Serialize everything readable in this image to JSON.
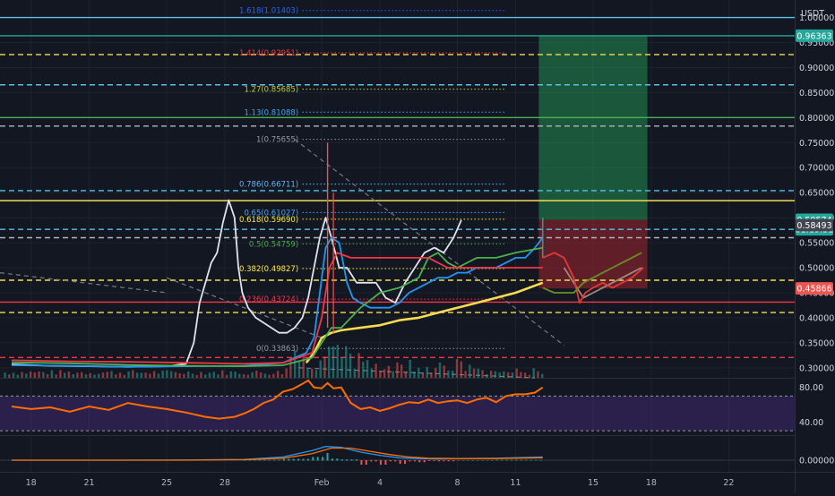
{
  "currency": "USDT",
  "chart_data": {
    "type": "line",
    "title": "",
    "quote_currency": "USDT",
    "price_axis": {
      "ticks": [
        1.0,
        0.95,
        0.9,
        0.85,
        0.8,
        0.75,
        0.7,
        0.65,
        0.6,
        0.55,
        0.5,
        0.45,
        0.4,
        0.35,
        0.3
      ],
      "tick_labels": [
        "1.00000",
        "0.95000",
        "0.90000",
        "0.85000",
        "0.80000",
        "0.75000",
        "0.70000",
        "0.65000",
        "0.60000",
        "0.55000",
        "0.50000",
        "0.45000",
        "0.40000",
        "0.35000",
        "0.30000"
      ],
      "ylim": [
        0.28,
        1.035
      ]
    },
    "rsi_axis": {
      "ticks": [
        80,
        40
      ],
      "tick_labels": [
        "80.00",
        "40.00"
      ],
      "ylim": [
        25,
        90
      ]
    },
    "macd_axis": {
      "ticks": [
        0
      ],
      "tick_labels": [
        "0.00000"
      ]
    },
    "time_axis": {
      "labels": [
        "18",
        "21",
        "25",
        "28",
        "Feb",
        "4",
        "8",
        "11",
        "15",
        "18",
        "22"
      ],
      "label_days": [
        -14,
        -11,
        -7,
        -4,
        1,
        4,
        8,
        11,
        15,
        18,
        22
      ],
      "xlim": [
        -15.6,
        25.4
      ],
      "last_bar_day": 12.4
    },
    "price_badges": [
      {
        "price": 0.96363,
        "label": "0.96363",
        "color": "#26a69a"
      },
      {
        "price": 0.59574,
        "label": "0.59574",
        "color": "#26a69a"
      },
      {
        "price": 0.5767,
        "label": "01:19:51",
        "color": "#26a69a"
      },
      {
        "price": 0.58493,
        "label": "0.58493",
        "color": "#434651"
      },
      {
        "price": 0.45866,
        "label": "0.45866",
        "color": "#ef5350"
      }
    ],
    "fib_levels": [
      {
        "ratio": "1.618",
        "price": 1.01403,
        "label": "1.618(1.01403)",
        "color": "#2962ff"
      },
      {
        "ratio": "1.414",
        "price": 0.92951,
        "label": "1.414(0.92951)",
        "color": "#f23645"
      },
      {
        "ratio": "1.27",
        "price": 0.85685,
        "label": "1.27(0.85685)",
        "color": "#c0ca33"
      },
      {
        "ratio": "1.13",
        "price": 0.81088,
        "label": "1.13(0.81088)",
        "color": "#42a5f5"
      },
      {
        "ratio": "1",
        "price": 0.75655,
        "label": "1(0.75655)",
        "color": "#9598a1"
      },
      {
        "ratio": "0.786",
        "price": 0.66711,
        "label": "0.786(0.66711)",
        "color": "#64b5f6"
      },
      {
        "ratio": "0.65",
        "price": 0.61027,
        "label": "0.65(0.61027)",
        "color": "#42a5f5"
      },
      {
        "ratio": "0.618",
        "price": 0.5969,
        "label": "0.618(0.59690)",
        "color": "#ffeb3b"
      },
      {
        "ratio": "0.5",
        "price": 0.54759,
        "label": "0.5(0.54759)",
        "color": "#4caf50"
      },
      {
        "ratio": "0.382",
        "price": 0.49827,
        "label": "0.382(0.49827)",
        "color": "#ffeb3b"
      },
      {
        "ratio": "0.236",
        "price": 0.43724,
        "label": "0.236(0.43724)",
        "color": "#f23645"
      },
      {
        "ratio": "0",
        "price": 0.33863,
        "label": "0(0.33863)",
        "color": "#9598a1"
      }
    ],
    "horizontal_lines": [
      {
        "price": 1.0,
        "style": "solid",
        "color": "#56c2e6"
      },
      {
        "price": 0.96363,
        "style": "solid",
        "color": "#26a69a"
      },
      {
        "price": 0.926,
        "style": "dashed",
        "color": "#f5dc50"
      },
      {
        "price": 0.8655,
        "style": "dashed",
        "color": "#56c2e6"
      },
      {
        "price": 0.8,
        "style": "solid",
        "color": "#4caf50"
      },
      {
        "price": 0.783,
        "style": "dashed",
        "color": "#b2b5be"
      },
      {
        "price": 0.654,
        "style": "dashed",
        "color": "#56c2e6"
      },
      {
        "price": 0.634,
        "style": "solid",
        "color": "#f5dc50"
      },
      {
        "price": 0.5767,
        "style": "dashed",
        "color": "#56c2e6"
      },
      {
        "price": 0.56,
        "style": "dashed",
        "color": "#b2b5be"
      },
      {
        "price": 0.475,
        "style": "dashed",
        "color": "#f5dc50"
      },
      {
        "price": 0.4313,
        "style": "solid",
        "color": "#f23645"
      },
      {
        "price": 0.4105,
        "style": "dashed",
        "color": "#f5dc50"
      },
      {
        "price": 0.3206,
        "style": "dashed",
        "color": "#f23645"
      }
    ],
    "position": {
      "entry": 0.59574,
      "target": 0.96363,
      "stop": 0.45866,
      "start_day": 12.2,
      "end_day": 17.8
    },
    "series": [
      {
        "name": "",
        "color": "#e0e3eb",
        "points": [
          [
            -15,
            0.307
          ],
          [
            -13,
            0.304
          ],
          [
            -11,
            0.303
          ],
          [
            -9,
            0.302
          ],
          [
            -7,
            0.303
          ],
          [
            -6,
            0.308
          ],
          [
            -5.6,
            0.35
          ],
          [
            -5.3,
            0.43
          ],
          [
            -5.0,
            0.47
          ],
          [
            -4.7,
            0.51
          ],
          [
            -4.4,
            0.53
          ],
          [
            -4.1,
            0.59
          ],
          [
            -3.8,
            0.635
          ],
          [
            -3.5,
            0.6
          ],
          [
            -3.3,
            0.5
          ],
          [
            -3.1,
            0.45
          ],
          [
            -2.8,
            0.42
          ],
          [
            -2.4,
            0.4
          ],
          [
            -2.0,
            0.39
          ],
          [
            -1.6,
            0.38
          ],
          [
            -1.2,
            0.37
          ],
          [
            -0.8,
            0.37
          ],
          [
            -0.4,
            0.38
          ],
          [
            0.0,
            0.4
          ],
          [
            0.3,
            0.44
          ],
          [
            0.6,
            0.5
          ],
          [
            0.9,
            0.56
          ],
          [
            1.2,
            0.6
          ],
          [
            1.5,
            0.56
          ],
          [
            1.9,
            0.5
          ],
          [
            2.3,
            0.5
          ],
          [
            2.8,
            0.47
          ],
          [
            3.3,
            0.47
          ],
          [
            3.8,
            0.47
          ],
          [
            4.3,
            0.44
          ],
          [
            4.8,
            0.43
          ],
          [
            5.3,
            0.47
          ],
          [
            5.8,
            0.5
          ],
          [
            6.3,
            0.53
          ],
          [
            6.8,
            0.54
          ],
          [
            7.3,
            0.53
          ],
          [
            7.8,
            0.56
          ],
          [
            8.2,
            0.595
          ]
        ]
      },
      {
        "name": "",
        "color": "#2196f3",
        "points": [
          [
            -15,
            0.305
          ],
          [
            -12,
            0.304
          ],
          [
            -9,
            0.302
          ],
          [
            -6,
            0.303
          ],
          [
            -3,
            0.304
          ],
          [
            -1,
            0.31
          ],
          [
            0.2,
            0.33
          ],
          [
            0.6,
            0.36
          ],
          [
            0.9,
            0.45
          ],
          [
            1.2,
            0.54
          ],
          [
            1.5,
            0.56
          ],
          [
            1.9,
            0.55
          ],
          [
            2.3,
            0.47
          ],
          [
            2.6,
            0.44
          ],
          [
            3.0,
            0.43
          ],
          [
            3.5,
            0.42
          ],
          [
            4.0,
            0.42
          ],
          [
            4.5,
            0.42
          ],
          [
            5.0,
            0.43
          ],
          [
            5.5,
            0.45
          ],
          [
            6.0,
            0.46
          ],
          [
            6.5,
            0.47
          ],
          [
            7.0,
            0.48
          ],
          [
            7.5,
            0.48
          ],
          [
            8.0,
            0.49
          ],
          [
            8.5,
            0.49
          ],
          [
            9.0,
            0.5
          ],
          [
            9.5,
            0.5
          ],
          [
            10.0,
            0.5
          ],
          [
            10.5,
            0.51
          ],
          [
            11.0,
            0.52
          ],
          [
            11.5,
            0.52
          ],
          [
            12.0,
            0.54
          ],
          [
            12.4,
            0.56
          ]
        ]
      },
      {
        "name": "",
        "color": "#f5dc50",
        "points": [
          [
            0.2,
            0.31
          ],
          [
            0.6,
            0.33
          ],
          [
            1.0,
            0.36
          ],
          [
            1.5,
            0.37
          ],
          [
            2.0,
            0.375
          ],
          [
            3.0,
            0.38
          ],
          [
            4.0,
            0.385
          ],
          [
            5.0,
            0.395
          ],
          [
            6.0,
            0.4
          ],
          [
            7.0,
            0.41
          ],
          [
            8.0,
            0.42
          ],
          [
            9.0,
            0.43
          ],
          [
            10.0,
            0.44
          ],
          [
            11.0,
            0.45
          ],
          [
            12.4,
            0.47
          ]
        ]
      },
      {
        "name": "",
        "color": "#4caf50",
        "points": [
          [
            -15,
            0.311
          ],
          [
            -12,
            0.309
          ],
          [
            -9,
            0.306
          ],
          [
            -6,
            0.304
          ],
          [
            -3,
            0.303
          ],
          [
            -1,
            0.305
          ],
          [
            0.5,
            0.32
          ],
          [
            1.0,
            0.35
          ],
          [
            1.5,
            0.38
          ],
          [
            2.0,
            0.38
          ],
          [
            3.0,
            0.42
          ],
          [
            4.0,
            0.45
          ],
          [
            5.0,
            0.46
          ],
          [
            6.0,
            0.48
          ],
          [
            6.5,
            0.52
          ],
          [
            7.0,
            0.53
          ],
          [
            7.5,
            0.51
          ],
          [
            8.0,
            0.5
          ],
          [
            9.0,
            0.52
          ],
          [
            10.0,
            0.52
          ],
          [
            11.0,
            0.53
          ],
          [
            12.4,
            0.54
          ]
        ]
      },
      {
        "name": "",
        "color": "#f23645",
        "points": [
          [
            -15,
            0.315
          ],
          [
            -12,
            0.313
          ],
          [
            -9,
            0.312
          ],
          [
            -6,
            0.31
          ],
          [
            -3,
            0.308
          ],
          [
            -1,
            0.31
          ],
          [
            0.5,
            0.33
          ],
          [
            1.0,
            0.4
          ],
          [
            1.4,
            0.5
          ],
          [
            1.8,
            0.53
          ],
          [
            2.5,
            0.52
          ],
          [
            3.5,
            0.52
          ],
          [
            4.5,
            0.52
          ],
          [
            5.5,
            0.52
          ],
          [
            6.5,
            0.52
          ],
          [
            7.5,
            0.5
          ],
          [
            8.5,
            0.5
          ],
          [
            9.5,
            0.5
          ],
          [
            10.5,
            0.5
          ],
          [
            11.5,
            0.5
          ],
          [
            12.4,
            0.5
          ]
        ]
      },
      {
        "name": "",
        "color": "#a1887f",
        "points": [
          [
            13.5,
            0.5
          ],
          [
            14.0,
            0.47
          ],
          [
            14.5,
            0.44
          ],
          [
            15.0,
            0.45
          ],
          [
            15.5,
            0.46
          ],
          [
            16.0,
            0.47
          ],
          [
            16.5,
            0.48
          ],
          [
            17.0,
            0.49
          ],
          [
            17.5,
            0.5
          ]
        ]
      },
      {
        "name": "",
        "color": "#e53935",
        "points": [
          [
            12.4,
            0.52
          ],
          [
            13.0,
            0.53
          ],
          [
            13.5,
            0.52
          ],
          [
            14.0,
            0.48
          ],
          [
            14.3,
            0.43
          ],
          [
            14.6,
            0.45
          ],
          [
            15.0,
            0.46
          ],
          [
            15.5,
            0.47
          ],
          [
            16.0,
            0.46
          ],
          [
            16.5,
            0.47
          ],
          [
            17.0,
            0.48
          ],
          [
            17.6,
            0.5
          ]
        ]
      },
      {
        "name": "",
        "color": "#6b8e23",
        "points": [
          [
            12.4,
            0.46
          ],
          [
            13.0,
            0.45
          ],
          [
            13.5,
            0.45
          ],
          [
            14.0,
            0.45
          ],
          [
            14.5,
            0.47
          ],
          [
            15.0,
            0.48
          ],
          [
            15.5,
            0.49
          ],
          [
            16.0,
            0.5
          ],
          [
            16.5,
            0.51
          ],
          [
            17.0,
            0.52
          ],
          [
            17.5,
            0.53
          ]
        ]
      }
    ],
    "rsi": [
      [
        -15,
        58
      ],
      [
        -14,
        55
      ],
      [
        -13,
        57
      ],
      [
        -12,
        52
      ],
      [
        -11,
        58
      ],
      [
        -10,
        54
      ],
      [
        -9,
        62
      ],
      [
        -8,
        58
      ],
      [
        -7,
        55
      ],
      [
        -6,
        51
      ],
      [
        -5,
        46
      ],
      [
        -4.3,
        44
      ],
      [
        -3.5,
        46
      ],
      [
        -3,
        50
      ],
      [
        -2.5,
        55
      ],
      [
        -2,
        62
      ],
      [
        -1.5,
        66
      ],
      [
        -1,
        75
      ],
      [
        -0.5,
        78
      ],
      [
        0,
        84
      ],
      [
        0.3,
        88
      ],
      [
        0.6,
        80
      ],
      [
        1,
        79
      ],
      [
        1.3,
        85
      ],
      [
        1.6,
        79
      ],
      [
        2,
        80
      ],
      [
        2.5,
        62
      ],
      [
        3,
        55
      ],
      [
        3.5,
        57
      ],
      [
        4,
        53
      ],
      [
        4.5,
        56
      ],
      [
        5,
        60
      ],
      [
        5.5,
        63
      ],
      [
        6,
        62
      ],
      [
        6.5,
        66
      ],
      [
        7,
        62
      ],
      [
        7.5,
        64
      ],
      [
        8,
        65
      ],
      [
        8.5,
        62
      ],
      [
        9,
        66
      ],
      [
        9.5,
        68
      ],
      [
        10,
        63
      ],
      [
        10.5,
        70
      ],
      [
        11,
        72
      ],
      [
        11.5,
        72
      ],
      [
        12,
        74
      ],
      [
        12.4,
        80
      ]
    ],
    "macd": [
      [
        -15,
        0.0
      ],
      [
        -10,
        0.0
      ],
      [
        -6,
        0.001
      ],
      [
        -3,
        0.005
      ],
      [
        -1,
        0.02
      ],
      [
        0.5,
        0.06
      ],
      [
        1.2,
        0.085
      ],
      [
        2,
        0.08
      ],
      [
        3,
        0.05
      ],
      [
        4,
        0.03
      ],
      [
        5,
        0.015
      ],
      [
        6,
        0.01
      ],
      [
        7,
        0.008
      ],
      [
        8,
        0.01
      ],
      [
        10,
        0.012
      ],
      [
        12.4,
        0.02
      ]
    ],
    "macd_signal": [
      [
        -15,
        0.0
      ],
      [
        -10,
        0.0
      ],
      [
        -6,
        0.0
      ],
      [
        -3,
        0.003
      ],
      [
        -1,
        0.012
      ],
      [
        0.5,
        0.04
      ],
      [
        1.5,
        0.075
      ],
      [
        2.5,
        0.075
      ],
      [
        3.5,
        0.055
      ],
      [
        4.5,
        0.035
      ],
      [
        5.5,
        0.02
      ],
      [
        6.5,
        0.012
      ],
      [
        8,
        0.01
      ],
      [
        10,
        0.01
      ],
      [
        12.4,
        0.015
      ]
    ]
  }
}
